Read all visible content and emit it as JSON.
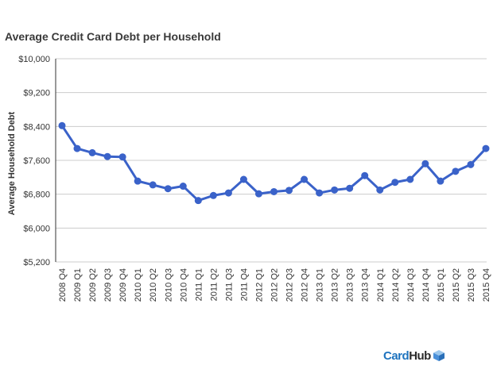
{
  "chart_data": {
    "type": "line",
    "title": "Average Credit Card Debt per Household",
    "xlabel": "",
    "ylabel": "Average Household Debt",
    "ylim": [
      5200,
      10000
    ],
    "y_ticks": [
      "$10,000",
      "$9,200",
      "$8,400",
      "$7,600",
      "$6,800",
      "$6,000",
      "$5,200"
    ],
    "y_tick_values": [
      10000,
      9200,
      8400,
      7600,
      6800,
      6000,
      5200
    ],
    "grid": true,
    "color": "#3a62c9",
    "categories": [
      "2008 Q4",
      "2009 Q1",
      "2009 Q2",
      "2009 Q3",
      "2009 Q4",
      "2010 Q1",
      "2010 Q2",
      "2010 Q3",
      "2010 Q4",
      "2011 Q1",
      "2011 Q2",
      "2011 Q3",
      "2011 Q4",
      "2012 Q1",
      "2012 Q2",
      "2012 Q3",
      "2012 Q4",
      "2013 Q1",
      "2013 Q2",
      "2013 Q3",
      "2013 Q4",
      "2014 Q1",
      "2014 Q2",
      "2014 Q3",
      "2014 Q4",
      "2015 Q1",
      "2015 Q2",
      "2015 Q3",
      "2015 Q4"
    ],
    "values": [
      8420,
      7880,
      7780,
      7690,
      7680,
      7110,
      7020,
      6930,
      6990,
      6650,
      6770,
      6830,
      7150,
      6810,
      6860,
      6890,
      7150,
      6830,
      6900,
      6940,
      7240,
      6900,
      7080,
      7150,
      7520,
      7110,
      7340,
      7500,
      7880
    ]
  },
  "branding": {
    "logo_card": "Card",
    "logo_hub": "Hub"
  }
}
